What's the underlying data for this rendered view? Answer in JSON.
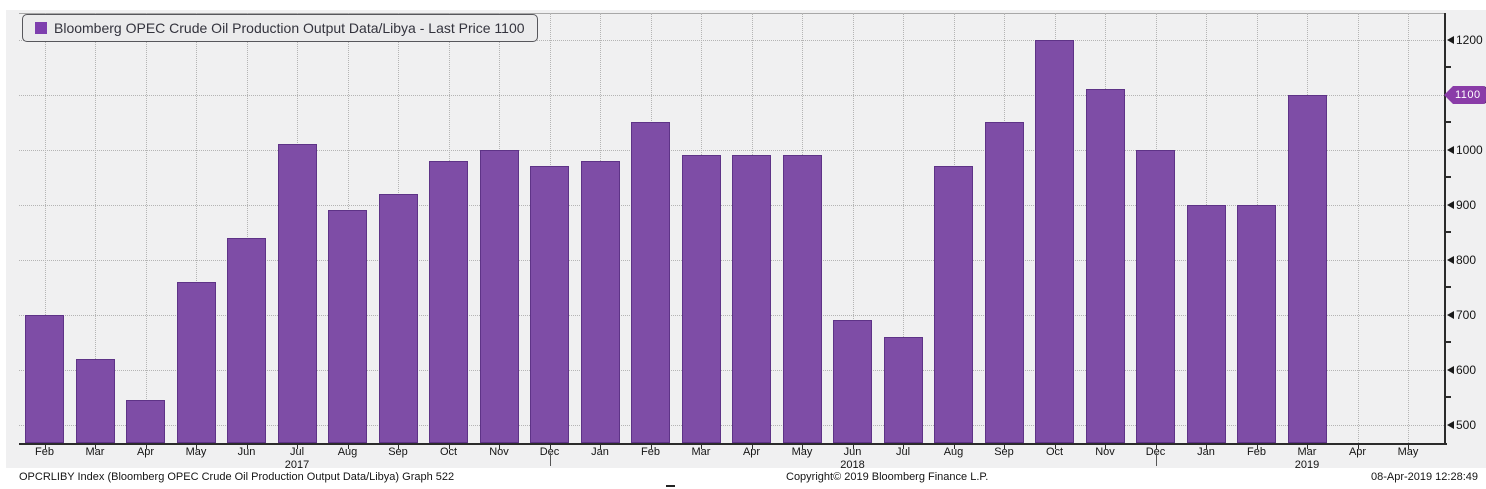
{
  "legend": {
    "label": "Bloomberg OPEC Crude Oil Production Output Data/Libya - Last Price 1100",
    "swatch_color": "#7e3fae"
  },
  "footer": {
    "left": "OPCRLIBY Index (Bloomberg OPEC Crude Oil Production Output Data/Libya) Graph 522",
    "center": "Copyright© 2019 Bloomberg Finance L.P.",
    "right": "08-Apr-2019 12:28:49"
  },
  "colors": {
    "bar": "#7e4da6",
    "bar_border": "#5e3387",
    "badge": "#8a3ca8",
    "plot_background": "#f0f0f1",
    "grid": "#b4b4b4",
    "axis": "#2b2b2b"
  },
  "chart_data": {
    "type": "bar",
    "title": "Bloomberg OPEC Crude Oil Production Output Data/Libya",
    "series_name": "Bloomberg OPEC Crude Oil Production Output Data/Libya - Last Price",
    "categories": [
      "Feb 2017",
      "Mar 2017",
      "Apr 2017",
      "May 2017",
      "Jun 2017",
      "Jul 2017",
      "Aug 2017",
      "Sep 2017",
      "Oct 2017",
      "Nov 2017",
      "Dec 2017",
      "Jan 2018",
      "Feb 2018",
      "Mar 2018",
      "Apr 2018",
      "May 2018",
      "Jun 2018",
      "Jul 2018",
      "Aug 2018",
      "Sep 2018",
      "Oct 2018",
      "Nov 2018",
      "Dec 2018",
      "Jan 2019",
      "Feb 2019",
      "Mar 2019"
    ],
    "values": [
      700,
      620,
      545,
      760,
      840,
      1010,
      890,
      920,
      980,
      1000,
      970,
      980,
      1050,
      990,
      990,
      990,
      690,
      660,
      970,
      1050,
      1200,
      1110,
      1000,
      900,
      900,
      1100
    ],
    "last_price": 1100,
    "last_price_label": "1100",
    "xlabel": "",
    "ylabel": "",
    "ylim": [
      467,
      1254
    ],
    "grid": "dotted",
    "legend_position": "top-left",
    "x_axis": {
      "slot_labels": [
        "Feb",
        "Mar",
        "Apr",
        "May",
        "Jun",
        "Jul",
        "Aug",
        "Sep",
        "Oct",
        "Nov",
        "Dec",
        "Jan",
        "Feb",
        "Mar",
        "Apr",
        "May",
        "Jun",
        "Jul",
        "Aug",
        "Sep",
        "Oct",
        "Nov",
        "Dec",
        "Jan",
        "Feb",
        "Mar",
        "Apr",
        "May"
      ],
      "year_labels": [
        {
          "index": 5,
          "label": "2017"
        },
        {
          "index": 16,
          "label": "2018"
        },
        {
          "index": 25,
          "label": "2019"
        }
      ],
      "year_divider_indices": [
        10,
        22
      ]
    },
    "y_axis": {
      "side": "right",
      "major_ticks": [
        500,
        600,
        700,
        800,
        900,
        1000,
        1100,
        1200
      ],
      "minor_ticks": [
        550,
        650,
        750,
        850,
        950,
        1050,
        1150
      ]
    }
  }
}
